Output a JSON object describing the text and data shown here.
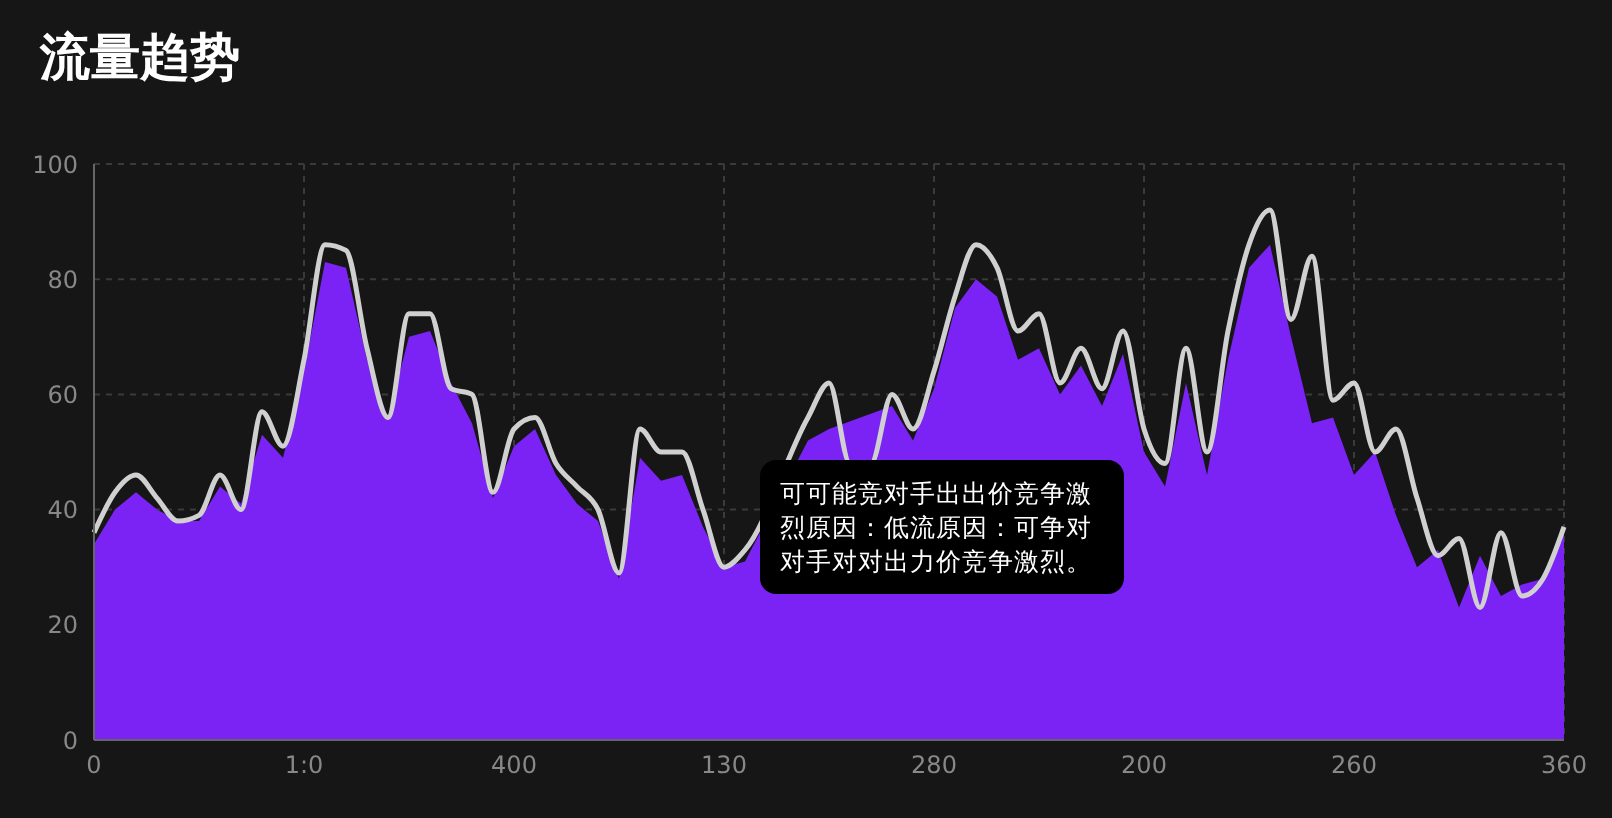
{
  "chart_data": {
    "type": "area",
    "title": "流量趋势",
    "categories": [
      "0",
      null,
      null,
      null,
      null,
      null,
      null,
      null,
      null,
      null,
      "1:0",
      null,
      null,
      null,
      null,
      null,
      null,
      null,
      null,
      null,
      "400",
      null,
      null,
      null,
      null,
      null,
      null,
      null,
      null,
      null,
      "130",
      null,
      null,
      null,
      null,
      null,
      null,
      null,
      null,
      null,
      "280",
      null,
      null,
      null,
      null,
      null,
      null,
      null,
      null,
      null,
      "200",
      null,
      null,
      null,
      null,
      null,
      null,
      null,
      null,
      null,
      "260",
      null,
      null,
      null,
      null,
      null,
      null,
      null,
      null,
      null,
      "360"
    ],
    "series": [
      {
        "color": "#7b22f5",
        "values": [
          34,
          40,
          43,
          40,
          38,
          38,
          44,
          41,
          53,
          49,
          64,
          83,
          82,
          66,
          56,
          70,
          71,
          62,
          55,
          42,
          51,
          54,
          46,
          41,
          38,
          28,
          49,
          45,
          46,
          37,
          30,
          31,
          null,
          null,
          52,
          54,
          null,
          null,
          58,
          52,
          61,
          75,
          80,
          77,
          66,
          68,
          60,
          65,
          58,
          67,
          50,
          44,
          62,
          46,
          66,
          82,
          86,
          70,
          55,
          56,
          46,
          50,
          39,
          30,
          33,
          23,
          32,
          25,
          27,
          28,
          36
        ]
      },
      {
        "type": "line",
        "color": "#d0d0d0",
        "values": [
          36,
          43,
          46,
          42,
          38,
          39,
          46,
          40,
          57,
          51,
          66,
          86,
          85,
          68,
          56,
          74,
          74,
          61,
          60,
          43,
          54,
          56,
          48,
          44,
          40,
          29,
          54,
          50,
          50,
          40,
          30,
          33,
          null,
          null,
          56,
          62,
          48,
          48,
          60,
          54,
          64,
          77,
          86,
          82,
          71,
          74,
          62,
          68,
          61,
          71,
          54,
          48,
          68,
          50,
          71,
          86,
          92,
          73,
          84,
          59,
          62,
          50,
          54,
          42,
          32,
          35,
          23,
          36,
          25,
          28,
          37
        ]
      }
    ],
    "ylim": [
      0,
      100
    ],
    "yticks": [
      0,
      20,
      40,
      60,
      80,
      100
    ],
    "grid": true,
    "annotations": [
      "可可能竞对手出出价竞争激烈原因：低流原因：可争对对手对对出力价竞争激烈。"
    ]
  }
}
